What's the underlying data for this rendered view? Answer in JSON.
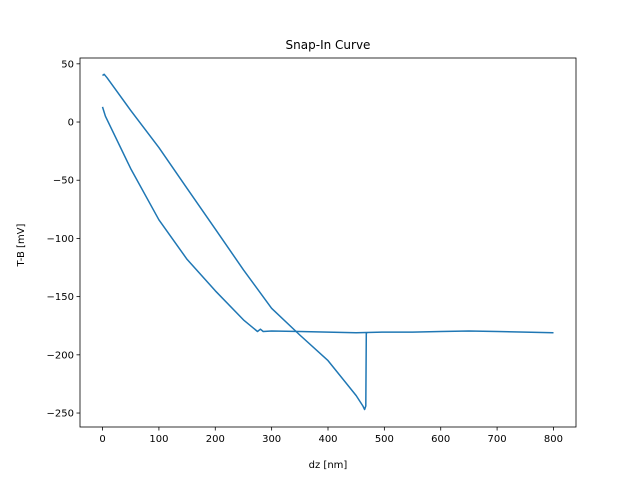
{
  "chart_data": {
    "type": "line",
    "title": "Snap-In Curve",
    "xlabel": "dz [nm]",
    "ylabel": "T-B [mV]",
    "xlim": [
      -40,
      840
    ],
    "ylim": [
      -262,
      55
    ],
    "xticks": [
      0,
      100,
      200,
      300,
      400,
      500,
      600,
      700,
      800
    ],
    "yticks": [
      50,
      0,
      -50,
      -100,
      -150,
      -200,
      -250
    ],
    "grid": false,
    "legend": "none",
    "color": "#1f77b4",
    "series": [
      {
        "x": [
          0,
          5,
          50,
          100,
          150,
          200,
          250,
          275,
          280,
          285,
          300,
          350,
          400,
          450,
          500,
          550,
          600,
          650,
          700,
          750,
          800
        ],
        "y": [
          13,
          5,
          -40,
          -84,
          -118,
          -145,
          -170,
          -180,
          -178,
          -180,
          -179.5,
          -180,
          -180.5,
          -181,
          -180.5,
          -180.5,
          -180,
          -179.5,
          -180,
          -180.5,
          -181
        ]
      },
      {
        "x": [
          0,
          3,
          8,
          20,
          50,
          100,
          150,
          200,
          250,
          300,
          350,
          400,
          450,
          462,
          465,
          467,
          468,
          470
        ],
        "y": [
          40,
          41,
          38,
          30,
          10,
          -22,
          -57,
          -92,
          -127,
          -160,
          -183,
          -205,
          -235,
          -244,
          -247,
          -244,
          -181,
          -181
        ]
      }
    ]
  }
}
